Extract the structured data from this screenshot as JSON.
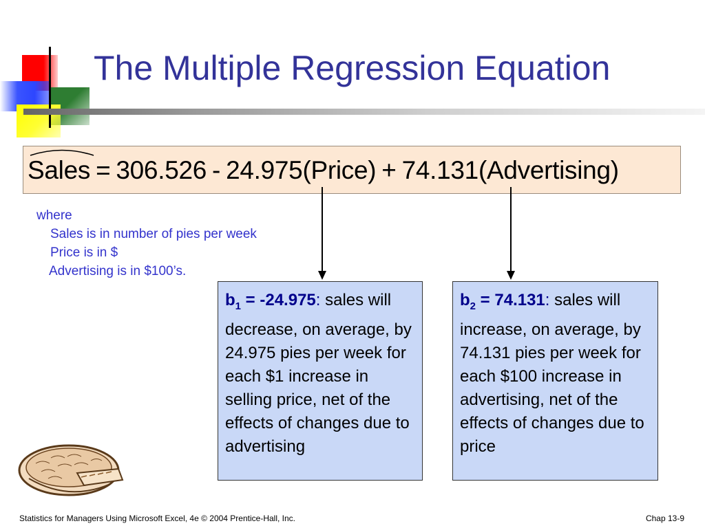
{
  "slide": {
    "title": "The Multiple Regression Equation",
    "equation": {
      "lhs": "Sales",
      "equals": "=",
      "intercept": "306.526",
      "minus": "-",
      "price_coef": "24.975",
      "price_term": "(Price)",
      "plus": "+",
      "adv_coef": "74.131",
      "adv_term": "(Advertising)"
    },
    "where": {
      "label": "where",
      "lines": [
        "Sales is in number of pies per week",
        "Price is in $",
        "Advertising is in $100’s."
      ]
    },
    "cards": [
      {
        "coef_letter": "b",
        "coef_sub": "1",
        "coef_value": " = -24.975",
        "colon": ":",
        "text": " sales will decrease, on average, by 24.975 pies per week for each $1 increase in selling price, net of the effects of changes due to advertising"
      },
      {
        "coef_letter": "b",
        "coef_sub": "2",
        "coef_value": " = 74.131",
        "colon": ":",
        "text": " sales will increase, on average, by 74.131 pies per week for each $100 increase in advertising, net of the effects of changes due to price"
      }
    ],
    "footer_left": "Statistics for Managers Using Microsoft Excel, 4e © 2004 Prentice-Hall, Inc.",
    "footer_right": "Chap 13-9"
  },
  "colors": {
    "title": "#333399",
    "where_text": "#3333cc",
    "equation_box": "#fde8d4",
    "card_bg": "#c9d8f7",
    "coef_text": "#00008b"
  },
  "icons": [
    "pie-clipart-icon",
    "slide-logo-squares"
  ]
}
